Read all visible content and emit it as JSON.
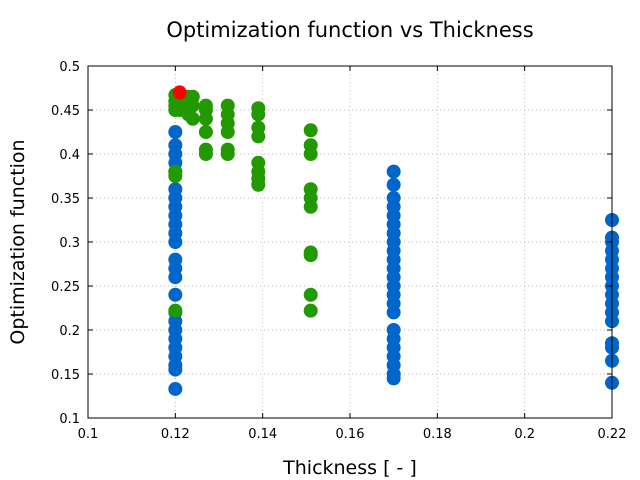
{
  "chart_data": {
    "type": "scatter",
    "title": "Optimization function vs Thickness",
    "xlabel": "Thickness [ - ]",
    "ylabel": "Optimization function",
    "xlim": [
      0.1,
      0.22
    ],
    "ylim": [
      0.1,
      0.5
    ],
    "xticks": [
      "0.1",
      "0.12",
      "0.14",
      "0.16",
      "0.18",
      "0.2",
      "0.22"
    ],
    "yticks": [
      "0.1",
      "0.15",
      "0.2",
      "0.25",
      "0.3",
      "0.35",
      "0.4",
      "0.45",
      "0.5"
    ],
    "grid": true,
    "series": [
      {
        "name": "blue",
        "color": "#0066cc",
        "points": [
          [
            0.12,
            0.425
          ],
          [
            0.12,
            0.41
          ],
          [
            0.12,
            0.4
          ],
          [
            0.12,
            0.39
          ],
          [
            0.12,
            0.38
          ],
          [
            0.12,
            0.36
          ],
          [
            0.12,
            0.35
          ],
          [
            0.12,
            0.34
          ],
          [
            0.12,
            0.33
          ],
          [
            0.12,
            0.32
          ],
          [
            0.12,
            0.31
          ],
          [
            0.12,
            0.3
          ],
          [
            0.12,
            0.28
          ],
          [
            0.12,
            0.27
          ],
          [
            0.12,
            0.26
          ],
          [
            0.12,
            0.24
          ],
          [
            0.12,
            0.22
          ],
          [
            0.12,
            0.21
          ],
          [
            0.12,
            0.2
          ],
          [
            0.12,
            0.19
          ],
          [
            0.12,
            0.18
          ],
          [
            0.12,
            0.17
          ],
          [
            0.12,
            0.16
          ],
          [
            0.12,
            0.155
          ],
          [
            0.12,
            0.133
          ],
          [
            0.17,
            0.38
          ],
          [
            0.17,
            0.365
          ],
          [
            0.17,
            0.35
          ],
          [
            0.17,
            0.34
          ],
          [
            0.17,
            0.33
          ],
          [
            0.17,
            0.32
          ],
          [
            0.17,
            0.31
          ],
          [
            0.17,
            0.3
          ],
          [
            0.17,
            0.29
          ],
          [
            0.17,
            0.28
          ],
          [
            0.17,
            0.27
          ],
          [
            0.17,
            0.26
          ],
          [
            0.17,
            0.25
          ],
          [
            0.17,
            0.24
          ],
          [
            0.17,
            0.23
          ],
          [
            0.17,
            0.22
          ],
          [
            0.17,
            0.2
          ],
          [
            0.17,
            0.19
          ],
          [
            0.17,
            0.18
          ],
          [
            0.17,
            0.17
          ],
          [
            0.17,
            0.16
          ],
          [
            0.17,
            0.15
          ],
          [
            0.17,
            0.145
          ],
          [
            0.22,
            0.325
          ],
          [
            0.22,
            0.305
          ],
          [
            0.22,
            0.3
          ],
          [
            0.22,
            0.29
          ],
          [
            0.22,
            0.28
          ],
          [
            0.22,
            0.27
          ],
          [
            0.22,
            0.26
          ],
          [
            0.22,
            0.25
          ],
          [
            0.22,
            0.24
          ],
          [
            0.22,
            0.23
          ],
          [
            0.22,
            0.22
          ],
          [
            0.22,
            0.21
          ],
          [
            0.22,
            0.185
          ],
          [
            0.22,
            0.18
          ],
          [
            0.22,
            0.165
          ],
          [
            0.22,
            0.14
          ]
        ]
      },
      {
        "name": "green",
        "color": "#229900",
        "points": [
          [
            0.12,
            0.467
          ],
          [
            0.12,
            0.46
          ],
          [
            0.12,
            0.455
          ],
          [
            0.12,
            0.45
          ],
          [
            0.12,
            0.38
          ],
          [
            0.12,
            0.375
          ],
          [
            0.12,
            0.222
          ],
          [
            0.121,
            0.465
          ],
          [
            0.121,
            0.46
          ],
          [
            0.121,
            0.455
          ],
          [
            0.121,
            0.45
          ],
          [
            0.123,
            0.465
          ],
          [
            0.123,
            0.455
          ],
          [
            0.123,
            0.445
          ],
          [
            0.124,
            0.465
          ],
          [
            0.124,
            0.455
          ],
          [
            0.124,
            0.44
          ],
          [
            0.127,
            0.455
          ],
          [
            0.127,
            0.45
          ],
          [
            0.127,
            0.44
          ],
          [
            0.127,
            0.425
          ],
          [
            0.127,
            0.405
          ],
          [
            0.127,
            0.4
          ],
          [
            0.132,
            0.455
          ],
          [
            0.132,
            0.445
          ],
          [
            0.132,
            0.435
          ],
          [
            0.132,
            0.425
          ],
          [
            0.132,
            0.405
          ],
          [
            0.132,
            0.4
          ],
          [
            0.139,
            0.452
          ],
          [
            0.139,
            0.445
          ],
          [
            0.139,
            0.43
          ],
          [
            0.139,
            0.42
          ],
          [
            0.139,
            0.39
          ],
          [
            0.139,
            0.38
          ],
          [
            0.139,
            0.372
          ],
          [
            0.139,
            0.365
          ],
          [
            0.151,
            0.427
          ],
          [
            0.151,
            0.41
          ],
          [
            0.151,
            0.4
          ],
          [
            0.151,
            0.36
          ],
          [
            0.151,
            0.35
          ],
          [
            0.151,
            0.34
          ],
          [
            0.151,
            0.288
          ],
          [
            0.151,
            0.285
          ],
          [
            0.151,
            0.24
          ],
          [
            0.151,
            0.222
          ]
        ]
      },
      {
        "name": "best",
        "color": "#ff0000",
        "points": [
          [
            0.121,
            0.47
          ]
        ]
      }
    ]
  }
}
